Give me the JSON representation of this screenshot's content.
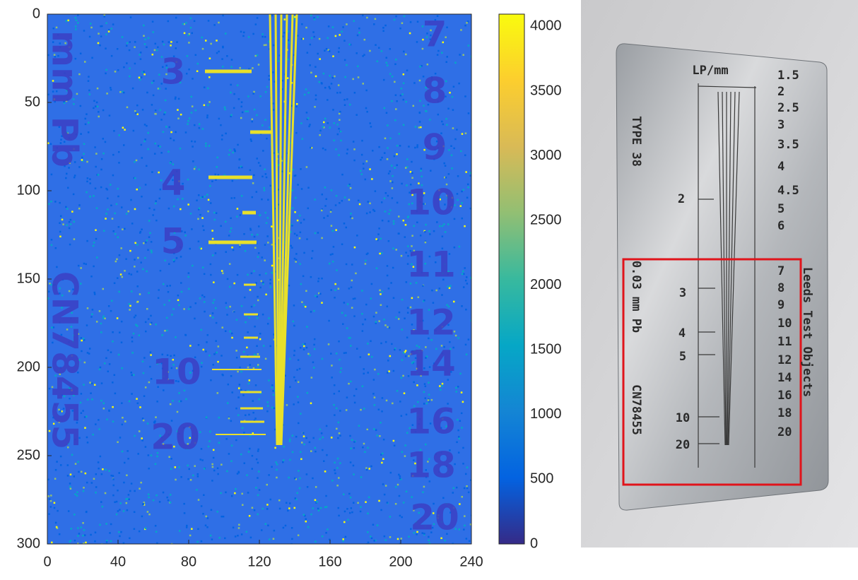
{
  "chart_data": {
    "type": "image",
    "xlim": [
      0,
      240
    ],
    "ylim": [
      300,
      0
    ],
    "xticks": [
      0,
      40,
      80,
      120,
      160,
      200,
      240
    ],
    "yticks": [
      0,
      50,
      100,
      150,
      200,
      250,
      300
    ],
    "background_color": "#2f6fe6",
    "colorbar": {
      "clim": [
        0,
        4095
      ],
      "ticks": [
        0,
        500,
        1000,
        1500,
        2000,
        2500,
        3000,
        3500,
        4000
      ],
      "colormap": [
        "#352a87",
        "#0363e1",
        "#1485d4",
        "#06a7c6",
        "#38b99e",
        "#92bf73",
        "#d9ba56",
        "#fcce2e",
        "#f9fb0e"
      ]
    },
    "image_labels": [
      "mm Pb",
      "CN78455",
      "3",
      "4",
      "5",
      "10",
      "20",
      "7",
      "8",
      "9",
      "10",
      "11",
      "12",
      "14",
      "16",
      "18",
      "20"
    ]
  },
  "photo": {
    "title": "LP/mm",
    "type_label": "TYPE 38",
    "thickness": "0.03 mm Pb",
    "serial": "CN78455",
    "brand": "Leeds Test Objects",
    "lp_scale": [
      "1.5",
      "2",
      "2.5",
      "3",
      "3.5",
      "4",
      "4.5",
      "5",
      "6",
      "7",
      "8",
      "9",
      "10",
      "11",
      "12",
      "14",
      "16",
      "18",
      "20"
    ],
    "inner_scale": [
      "2",
      "3",
      "4",
      "5",
      "10",
      "20"
    ]
  }
}
